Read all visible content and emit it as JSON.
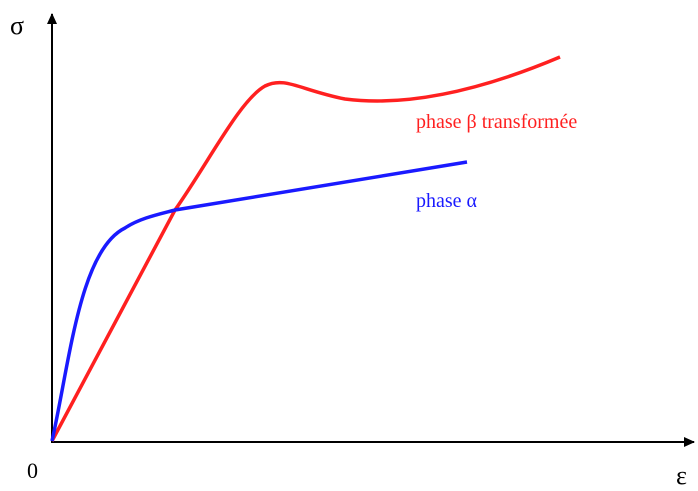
{
  "axes": {
    "y_label": "σ",
    "x_label": "ε",
    "origin": "0"
  },
  "curves": [
    {
      "label": "phase β transformée",
      "color": "#ff2020"
    },
    {
      "label": "phase α",
      "color": "#1a1aff"
    }
  ]
}
